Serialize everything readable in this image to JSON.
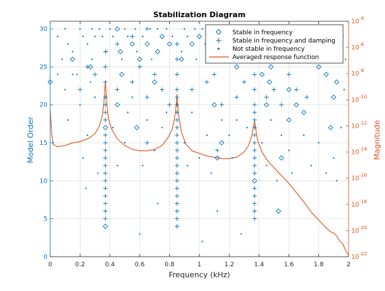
{
  "chart_data": {
    "type": "scatter",
    "title": "Stabilization Diagram",
    "xlabel": "Frequency (kHz)",
    "ylabel_left": "Model Order",
    "ylabel_right": "Magnitude",
    "xlim": [
      0,
      2
    ],
    "ylim_left": [
      0,
      31
    ],
    "ylim_right_log10": [
      -22,
      -4
    ],
    "x_ticks": [
      "0",
      "0.2",
      "0.4",
      "0.6",
      "0.8",
      "1",
      "1.2",
      "1.4",
      "1.6",
      "1.8",
      "2"
    ],
    "y_ticks_left": [
      "0",
      "5",
      "10",
      "15",
      "20",
      "25",
      "30"
    ],
    "y_ticks_right_exponents": [
      -22,
      -20,
      -18,
      -16,
      -14,
      -12,
      -10,
      -8,
      -6,
      -4
    ],
    "grid": true,
    "legend_position": "top-right",
    "colors": {
      "left_axis": "#0072bd",
      "right_axis": "#d95319",
      "markers": "#0072bd",
      "curve": "#d95319"
    },
    "series": [
      {
        "name": "Stable in frequency",
        "marker": "diamond",
        "points": [
          [
            0.0,
            23
          ],
          [
            0.37,
            4
          ],
          [
            0.37,
            17
          ],
          [
            0.45,
            20
          ],
          [
            0.45,
            30
          ],
          [
            0.47,
            27
          ],
          [
            0.48,
            24
          ],
          [
            0.55,
            28
          ],
          [
            0.6,
            26
          ],
          [
            0.65,
            28
          ],
          [
            0.7,
            23
          ],
          [
            0.72,
            27
          ],
          [
            0.75,
            29
          ],
          [
            0.8,
            28
          ],
          [
            0.88,
            26
          ],
          [
            0.95,
            28
          ],
          [
            1.0,
            29
          ],
          [
            1.05,
            28
          ],
          [
            1.1,
            20
          ],
          [
            1.12,
            13
          ],
          [
            1.15,
            15
          ],
          [
            1.25,
            25
          ],
          [
            1.35,
            29
          ],
          [
            1.37,
            10
          ],
          [
            1.42,
            24
          ],
          [
            1.45,
            20
          ],
          [
            1.47,
            23
          ],
          [
            1.48,
            25
          ],
          [
            1.5,
            26
          ],
          [
            1.52,
            27
          ],
          [
            1.55,
            13
          ],
          [
            1.6,
            22
          ],
          [
            1.65,
            20
          ],
          [
            1.7,
            19
          ],
          [
            1.75,
            26
          ],
          [
            1.8,
            25
          ],
          [
            1.85,
            24
          ],
          [
            1.88,
            17
          ],
          [
            1.9,
            21
          ],
          [
            1.92,
            23
          ],
          [
            1.95,
            29
          ],
          [
            0.15,
            26
          ],
          [
            0.27,
            25
          ],
          [
            0.58,
            17
          ],
          [
            1.53,
            6
          ],
          [
            1.6,
            18
          ]
        ]
      },
      {
        "name": "Stable in frequency and damping",
        "marker": "plus",
        "points": [
          [
            0.37,
            5
          ],
          [
            0.37,
            6
          ],
          [
            0.37,
            7
          ],
          [
            0.37,
            8
          ],
          [
            0.37,
            9
          ],
          [
            0.37,
            10
          ],
          [
            0.37,
            11
          ],
          [
            0.37,
            12
          ],
          [
            0.37,
            13
          ],
          [
            0.37,
            14
          ],
          [
            0.37,
            15
          ],
          [
            0.37,
            16
          ],
          [
            0.37,
            18
          ],
          [
            0.37,
            19
          ],
          [
            0.37,
            20
          ],
          [
            0.37,
            21
          ],
          [
            0.85,
            4
          ],
          [
            0.85,
            5
          ],
          [
            0.85,
            6
          ],
          [
            0.85,
            7
          ],
          [
            0.85,
            8
          ],
          [
            0.85,
            9
          ],
          [
            0.85,
            10
          ],
          [
            0.85,
            11
          ],
          [
            0.85,
            12
          ],
          [
            0.85,
            13
          ],
          [
            0.85,
            14
          ],
          [
            0.85,
            15
          ],
          [
            0.85,
            16
          ],
          [
            0.85,
            17
          ],
          [
            0.85,
            18
          ],
          [
            0.85,
            19
          ],
          [
            0.85,
            20
          ],
          [
            0.85,
            21
          ],
          [
            0.85,
            22
          ],
          [
            1.37,
            5
          ],
          [
            1.37,
            6
          ],
          [
            1.37,
            7
          ],
          [
            1.37,
            8
          ],
          [
            1.37,
            9
          ],
          [
            1.37,
            11
          ],
          [
            1.37,
            12
          ],
          [
            1.37,
            13
          ],
          [
            1.37,
            14
          ],
          [
            1.37,
            15
          ],
          [
            1.37,
            16
          ],
          [
            1.37,
            17
          ],
          [
            1.37,
            18
          ],
          [
            1.37,
            19
          ],
          [
            1.37,
            20
          ],
          [
            0.45,
            22
          ],
          [
            0.55,
            23
          ],
          [
            0.6,
            25
          ],
          [
            0.65,
            21
          ],
          [
            0.7,
            24
          ],
          [
            0.75,
            22
          ],
          [
            0.8,
            20
          ],
          [
            0.95,
            22
          ],
          [
            1.05,
            23
          ],
          [
            1.1,
            24
          ],
          [
            1.15,
            20
          ],
          [
            1.25,
            21
          ],
          [
            1.3,
            23
          ],
          [
            1.45,
            21
          ],
          [
            1.5,
            22
          ],
          [
            1.55,
            20
          ],
          [
            1.6,
            24
          ],
          [
            1.65,
            22
          ],
          [
            1.72,
            21
          ],
          [
            0.2,
            22
          ],
          [
            0.3,
            24
          ],
          [
            0.25,
            25
          ],
          [
            0.65,
            15
          ],
          [
            1.12,
            14
          ],
          [
            0.85,
            24
          ],
          [
            0.85,
            26
          ],
          [
            0.85,
            28
          ],
          [
            0.37,
            23
          ],
          [
            0.37,
            25
          ],
          [
            0.37,
            27
          ],
          [
            1.37,
            22
          ],
          [
            1.37,
            24
          ],
          [
            1.37,
            26
          ],
          [
            0.45,
            28
          ],
          [
            0.55,
            29
          ],
          [
            0.65,
            30
          ],
          [
            1.65,
            28
          ],
          [
            1.75,
            29
          ]
        ]
      },
      {
        "name": "Not stable in frequency",
        "marker": "dot",
        "points": [
          [
            0.05,
            29
          ],
          [
            0.1,
            30
          ],
          [
            0.12,
            28
          ],
          [
            0.15,
            27
          ],
          [
            0.2,
            30
          ],
          [
            0.22,
            29
          ],
          [
            0.25,
            28
          ],
          [
            0.28,
            30
          ],
          [
            0.3,
            29
          ],
          [
            0.33,
            30
          ],
          [
            0.35,
            29
          ],
          [
            0.4,
            30
          ],
          [
            0.42,
            29
          ],
          [
            0.5,
            30
          ],
          [
            0.52,
            29
          ],
          [
            0.57,
            30
          ],
          [
            0.62,
            29
          ],
          [
            0.67,
            30
          ],
          [
            0.72,
            30
          ],
          [
            0.78,
            30
          ],
          [
            0.82,
            29
          ],
          [
            0.9,
            30
          ],
          [
            0.92,
            29
          ],
          [
            0.97,
            30
          ],
          [
            1.02,
            30
          ],
          [
            1.07,
            29
          ],
          [
            1.12,
            30
          ],
          [
            1.17,
            29
          ],
          [
            1.22,
            30
          ],
          [
            1.27,
            29
          ],
          [
            1.32,
            30
          ],
          [
            1.4,
            30
          ],
          [
            1.45,
            29
          ],
          [
            1.5,
            30
          ],
          [
            1.55,
            29
          ],
          [
            1.6,
            30
          ],
          [
            1.65,
            29
          ],
          [
            1.7,
            30
          ],
          [
            1.75,
            29
          ],
          [
            1.8,
            30
          ],
          [
            1.85,
            29
          ],
          [
            1.9,
            30
          ],
          [
            1.95,
            28
          ],
          [
            0.1,
            22
          ],
          [
            0.12,
            18
          ],
          [
            0.15,
            24
          ],
          [
            0.2,
            20
          ],
          [
            0.22,
            13
          ],
          [
            0.24,
            9
          ],
          [
            0.25,
            16
          ],
          [
            0.27,
            23
          ],
          [
            0.3,
            21
          ],
          [
            0.32,
            11
          ],
          [
            0.42,
            17
          ],
          [
            0.45,
            12
          ],
          [
            0.5,
            15
          ],
          [
            0.52,
            19
          ],
          [
            0.55,
            21
          ],
          [
            0.6,
            3
          ],
          [
            0.62,
            12
          ],
          [
            0.65,
            18
          ],
          [
            0.7,
            14
          ],
          [
            0.72,
            7
          ],
          [
            0.75,
            17
          ],
          [
            0.78,
            19
          ],
          [
            0.9,
            15
          ],
          [
            0.92,
            12
          ],
          [
            0.95,
            19
          ],
          [
            1.0,
            13
          ],
          [
            1.02,
            2
          ],
          [
            1.05,
            16
          ],
          [
            1.08,
            11
          ],
          [
            1.12,
            6
          ],
          [
            1.15,
            18
          ],
          [
            1.2,
            16
          ],
          [
            1.22,
            13
          ],
          [
            1.25,
            18
          ],
          [
            1.28,
            3
          ],
          [
            1.32,
            17
          ],
          [
            1.42,
            15
          ],
          [
            1.45,
            12
          ],
          [
            1.48,
            18
          ],
          [
            1.52,
            10
          ],
          [
            1.55,
            16
          ],
          [
            1.6,
            14
          ],
          [
            1.62,
            11
          ],
          [
            1.7,
            16
          ],
          [
            1.75,
            12
          ],
          [
            1.8,
            15
          ],
          [
            1.85,
            11
          ],
          [
            1.9,
            13
          ],
          [
            1.92,
            10
          ],
          [
            0.08,
            26
          ],
          [
            0.18,
            24
          ],
          [
            0.28,
            26
          ],
          [
            0.38,
            27
          ],
          [
            0.48,
            26
          ],
          [
            0.58,
            27
          ],
          [
            0.68,
            26
          ],
          [
            0.88,
            27
          ],
          [
            0.98,
            26
          ],
          [
            1.08,
            27
          ],
          [
            1.18,
            26
          ],
          [
            1.28,
            27
          ],
          [
            1.38,
            26
          ],
          [
            1.48,
            27
          ],
          [
            1.58,
            26
          ],
          [
            1.68,
            27
          ],
          [
            1.78,
            26
          ],
          [
            1.88,
            27
          ],
          [
            1.98,
            26
          ],
          [
            0.02,
            15
          ],
          [
            0.05,
            24
          ],
          [
            1.95,
            17
          ],
          [
            1.97,
            22
          ]
        ]
      }
    ],
    "averaged_response": {
      "name": "Averaged response function",
      "y_axis": "right",
      "x_khz": [
        0.0,
        0.01,
        0.02,
        0.05,
        0.1,
        0.15,
        0.2,
        0.25,
        0.3,
        0.33,
        0.35,
        0.36,
        0.37,
        0.38,
        0.39,
        0.41,
        0.45,
        0.5,
        0.55,
        0.6,
        0.65,
        0.7,
        0.75,
        0.79,
        0.82,
        0.84,
        0.85,
        0.86,
        0.88,
        0.91,
        0.95,
        1.0,
        1.05,
        1.1,
        1.15,
        1.2,
        1.25,
        1.3,
        1.33,
        1.35,
        1.36,
        1.37,
        1.38,
        1.39,
        1.42,
        1.46,
        1.5,
        1.55,
        1.6,
        1.65,
        1.7,
        1.75,
        1.8,
        1.85,
        1.88,
        1.9,
        1.92,
        1.94,
        1.96,
        1.98,
        2.0
      ],
      "magnitude_log10": [
        -10.8,
        -12.6,
        -13.4,
        -13.6,
        -13.5,
        -13.3,
        -13.2,
        -13.0,
        -12.6,
        -12.0,
        -11.2,
        -10.2,
        -8.6,
        -10.4,
        -11.4,
        -12.2,
        -13.0,
        -13.5,
        -13.8,
        -13.9,
        -13.9,
        -13.8,
        -13.5,
        -12.9,
        -12.2,
        -11.0,
        -9.6,
        -11.1,
        -12.5,
        -13.4,
        -13.9,
        -14.1,
        -14.3,
        -14.4,
        -14.5,
        -14.5,
        -14.4,
        -14.0,
        -13.5,
        -12.8,
        -12.2,
        -11.6,
        -12.4,
        -13.1,
        -14.0,
        -14.7,
        -15.2,
        -15.8,
        -16.4,
        -17.1,
        -17.8,
        -18.6,
        -19.2,
        -19.8,
        -20.1,
        -20.2,
        -20.4,
        -20.8,
        -21.0,
        -21.5,
        -21.9
      ]
    }
  }
}
